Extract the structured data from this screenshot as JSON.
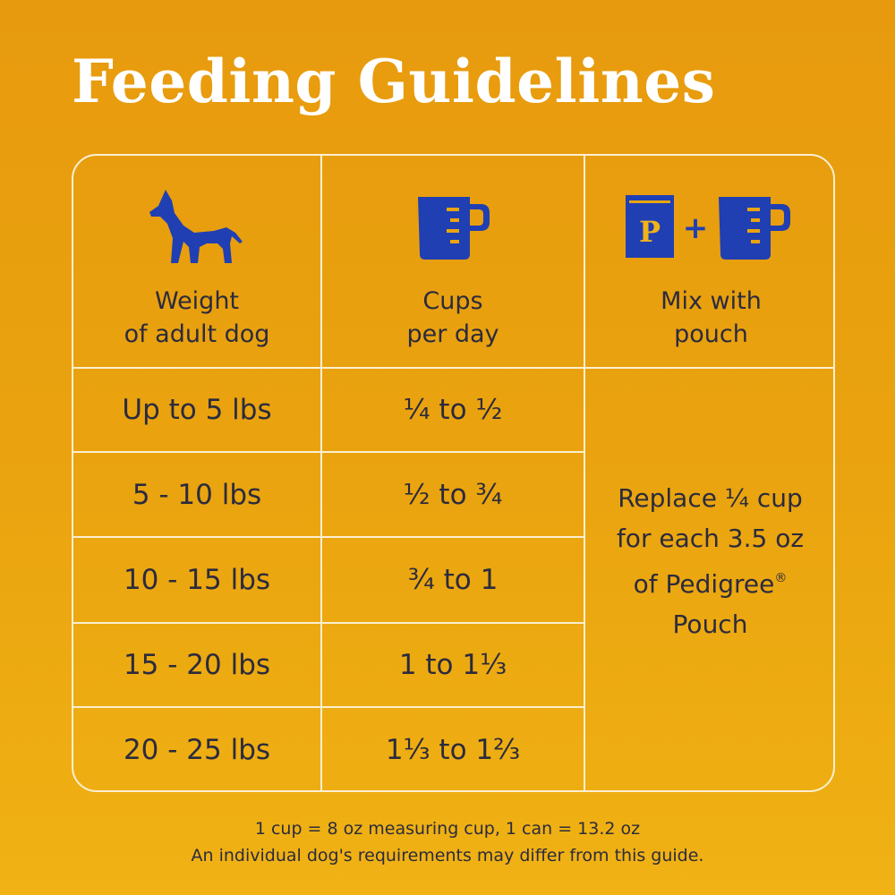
{
  "title": "Feeding Guidelines",
  "colors": {
    "background": "#eaa40f",
    "icon_blue": "#1f3fb3",
    "text": "#2b2b3d",
    "lines": "#fbefd2",
    "title": "#ffffff"
  },
  "headers": {
    "weight": {
      "icon": "dog-icon",
      "line1": "Weight",
      "line2": "of adult dog"
    },
    "cups": {
      "icon": "measuring-cup-icon",
      "line1": "Cups",
      "line2": "per day"
    },
    "mix": {
      "icon": "pouch-plus-cup-icon",
      "pouch_letter": "P",
      "plus": "+",
      "line1": "Mix with",
      "line2": "pouch"
    }
  },
  "rows": [
    {
      "weight": "Up to 5 lbs",
      "cups": "¼  to  ½"
    },
    {
      "weight": "5 - 10 lbs",
      "cups": "½  to  ¾"
    },
    {
      "weight": "10 - 15 lbs",
      "cups": "¾  to  1"
    },
    {
      "weight": "15 - 20 lbs",
      "cups": "1  to  1⅓"
    },
    {
      "weight": "20 - 25 lbs",
      "cups": "1⅓  to  1⅔"
    }
  ],
  "mix_note": {
    "line1": "Replace ¼ cup",
    "line2": "for each 3.5 oz",
    "line3": "of Pedigree",
    "registered": "®",
    "line4": "Pouch"
  },
  "footnote": {
    "line1": "1 cup = 8 oz measuring cup, 1 can = 13.2 oz",
    "line2": "An individual dog's requirements may differ from this guide."
  }
}
